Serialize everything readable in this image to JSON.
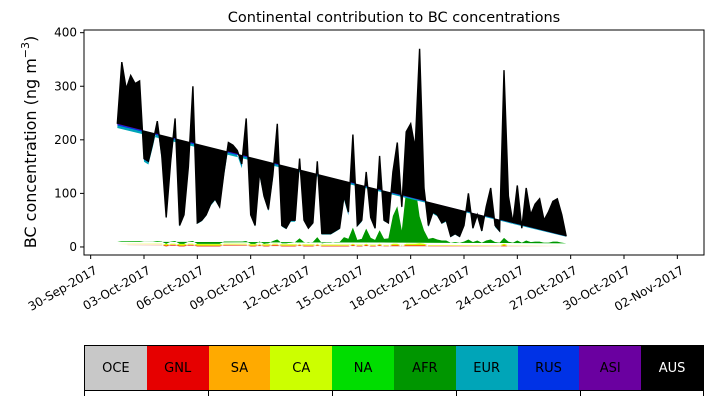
{
  "chart_data": {
    "type": "area",
    "stacked": true,
    "title": "Continental contribution to BC concentrations",
    "ylabel": "BC concentration (ng m",
    "ylabel_sup": "−3",
    "ylabel_close": ")",
    "ylim": [
      -15,
      405
    ],
    "yticks": [
      "0",
      "100",
      "200",
      "300",
      "400"
    ],
    "x_range": [
      "2017-09-29T15:00",
      "2017-11-03T12:00"
    ],
    "xticks": [
      "30-Sep-2017",
      "03-Oct-2017",
      "06-Oct-2017",
      "09-Oct-2017",
      "12-Oct-2017",
      "15-Oct-2017",
      "18-Oct-2017",
      "21-Oct-2017",
      "24-Oct-2017",
      "27-Oct-2017",
      "30-Oct-2017",
      "02-Nov-2017"
    ],
    "xtick_dates": [
      "2017-09-30",
      "2017-10-03",
      "2017-10-06",
      "2017-10-09",
      "2017-10-12",
      "2017-10-15",
      "2017-10-18",
      "2017-10-21",
      "2017-10-24",
      "2017-10-27",
      "2017-10-30",
      "2017-11-02"
    ],
    "total_line_color": "#000000",
    "series": [
      {
        "name": "OCE",
        "color": "#c8c8c8"
      },
      {
        "name": "GNL",
        "color": "#e60000"
      },
      {
        "name": "SA",
        "color": "#ffaa00"
      },
      {
        "name": "CA",
        "color": "#ccff00"
      },
      {
        "name": "NA",
        "color": "#00dd00"
      },
      {
        "name": "AFR",
        "color": "#009600"
      },
      {
        "name": "EUR",
        "color": "#00a5b8"
      },
      {
        "name": "RUS",
        "color": "#0032e6"
      },
      {
        "name": "ASI",
        "color": "#6a00a0"
      },
      {
        "name": "AUS",
        "color": "#000000"
      }
    ],
    "x": [
      "2017-10-01T12:00",
      "2017-10-01T18:00",
      "2017-10-02T00:00",
      "2017-10-02T06:00",
      "2017-10-02T12:00",
      "2017-10-02T18:00",
      "2017-10-03T00:00",
      "2017-10-03T06:00",
      "2017-10-03T12:00",
      "2017-10-03T18:00",
      "2017-10-04T00:00",
      "2017-10-04T06:00",
      "2017-10-04T12:00",
      "2017-10-04T18:00",
      "2017-10-05T00:00",
      "2017-10-05T06:00",
      "2017-10-05T12:00",
      "2017-10-05T18:00",
      "2017-10-06T00:00",
      "2017-10-06T06:00",
      "2017-10-06T12:00",
      "2017-10-06T18:00",
      "2017-10-07T00:00",
      "2017-10-07T06:00",
      "2017-10-07T12:00",
      "2017-10-07T18:00",
      "2017-10-08T00:00",
      "2017-10-08T06:00",
      "2017-10-08T12:00",
      "2017-10-08T18:00",
      "2017-10-09T00:00",
      "2017-10-09T06:00",
      "2017-10-09T12:00",
      "2017-10-09T18:00",
      "2017-10-10T00:00",
      "2017-10-10T06:00",
      "2017-10-10T12:00",
      "2017-10-10T18:00",
      "2017-10-11T00:00",
      "2017-10-11T06:00",
      "2017-10-11T12:00",
      "2017-10-11T18:00",
      "2017-10-12T00:00",
      "2017-10-12T06:00",
      "2017-10-12T12:00",
      "2017-10-12T18:00",
      "2017-10-13T00:00",
      "2017-10-13T06:00",
      "2017-10-13T12:00",
      "2017-10-13T18:00",
      "2017-10-14T00:00",
      "2017-10-14T06:00",
      "2017-10-14T12:00",
      "2017-10-14T18:00",
      "2017-10-15T00:00",
      "2017-10-15T06:00",
      "2017-10-15T12:00",
      "2017-10-15T18:00",
      "2017-10-16T00:00",
      "2017-10-16T06:00",
      "2017-10-16T12:00",
      "2017-10-16T18:00",
      "2017-10-17T00:00",
      "2017-10-17T06:00",
      "2017-10-17T12:00",
      "2017-10-17T18:00",
      "2017-10-18T00:00",
      "2017-10-18T06:00",
      "2017-10-18T12:00",
      "2017-10-18T18:00",
      "2017-10-19T00:00",
      "2017-10-19T06:00",
      "2017-10-19T12:00",
      "2017-10-19T18:00",
      "2017-10-20T00:00",
      "2017-10-20T06:00",
      "2017-10-20T12:00",
      "2017-10-20T18:00",
      "2017-10-21T00:00",
      "2017-10-21T06:00",
      "2017-10-21T12:00",
      "2017-10-21T18:00",
      "2017-10-22T00:00",
      "2017-10-22T06:00",
      "2017-10-22T12:00",
      "2017-10-22T18:00",
      "2017-10-23T00:00",
      "2017-10-23T06:00",
      "2017-10-23T12:00",
      "2017-10-23T18:00",
      "2017-10-24T00:00",
      "2017-10-24T06:00",
      "2017-10-24T12:00",
      "2017-10-24T18:00",
      "2017-10-25T00:00",
      "2017-10-25T06:00",
      "2017-10-25T12:00",
      "2017-10-25T18:00",
      "2017-10-26T00:00",
      "2017-10-26T06:00",
      "2017-10-26T12:00",
      "2017-10-26T18:00",
      "2017-10-27T00:00",
      "2017-10-27T06:00",
      "2017-10-27T12:00",
      "2017-10-27T18:00",
      "2017-10-28T00:00",
      "2017-10-28T06:00",
      "2017-10-28T12:00",
      "2017-10-28T18:00",
      "2017-10-29T00:00",
      "2017-10-29T06:00",
      "2017-10-29T12:00",
      "2017-10-29T18:00",
      "2017-10-30T00:00",
      "2017-10-30T06:00",
      "2017-10-30T12:00",
      "2017-10-30T18:00",
      "2017-10-31T00:00",
      "2017-10-31T06:00",
      "2017-10-31T12:00",
      "2017-10-31T18:00",
      "2017-11-01T00:00",
      "2017-11-01T06:00",
      "2017-11-01T12:00",
      "2017-11-01T18:00",
      "2017-11-02T00:00",
      "2017-11-02T06:00",
      "2017-11-02T12:00"
    ],
    "total": [
      230,
      345,
      295,
      320,
      305,
      310,
      165,
      160,
      195,
      235,
      170,
      55,
      160,
      240,
      40,
      60,
      150,
      300,
      45,
      50,
      60,
      80,
      90,
      75,
      140,
      195,
      190,
      180,
      155,
      240,
      60,
      40,
      140,
      95,
      70,
      135,
      230,
      40,
      35,
      50,
      50,
      165,
      50,
      35,
      45,
      160,
      25,
      25,
      25,
      30,
      35,
      95,
      65,
      210,
      40,
      50,
      140,
      55,
      35,
      170,
      50,
      45,
      140,
      195,
      75,
      215,
      230,
      185,
      370,
      110,
      40,
      65,
      60,
      45,
      50,
      20,
      25,
      20,
      40,
      100,
      35,
      60,
      30,
      75,
      110,
      40,
      30,
      330,
      95,
      45,
      115,
      35,
      110,
      60,
      80,
      90,
      50,
      65,
      85,
      90,
      60,
      20
    ],
    "values": {
      "OCE": [
        2,
        2,
        2,
        2,
        2,
        2,
        2,
        2,
        2,
        2,
        2,
        1,
        2,
        2,
        1,
        1,
        2,
        2,
        1,
        1,
        1,
        1,
        1,
        1,
        2,
        2,
        2,
        2,
        2,
        2,
        1,
        1,
        2,
        1,
        1,
        2,
        2,
        1,
        1,
        1,
        1,
        2,
        1,
        1,
        1,
        2,
        1,
        1,
        1,
        1,
        1,
        1,
        1,
        2,
        1,
        1,
        2,
        1,
        1,
        2,
        1,
        1,
        2,
        2,
        1,
        2,
        2,
        2,
        3,
        2,
        1,
        1,
        1,
        1,
        1,
        1,
        1,
        1,
        1,
        1,
        1,
        1,
        1,
        1,
        1,
        1,
        1,
        2,
        1,
        1,
        1,
        1,
        1,
        1,
        1,
        1,
        1,
        1,
        1,
        1,
        1,
        1
      ],
      "GNL": [
        1,
        1,
        1,
        1,
        1,
        1,
        1,
        1,
        1,
        1,
        1,
        0,
        1,
        1,
        0,
        0,
        1,
        1,
        0,
        0,
        0,
        0,
        0,
        0,
        1,
        1,
        1,
        1,
        1,
        1,
        0,
        0,
        1,
        0,
        0,
        1,
        1,
        0,
        0,
        0,
        0,
        1,
        0,
        0,
        0,
        1,
        0,
        0,
        0,
        0,
        0,
        0,
        0,
        1,
        0,
        0,
        1,
        0,
        0,
        1,
        0,
        0,
        1,
        1,
        0,
        1,
        1,
        1,
        1,
        1,
        0,
        0,
        0,
        0,
        0,
        0,
        0,
        0,
        0,
        0,
        0,
        0,
        0,
        0,
        0,
        0,
        0,
        1,
        0,
        0,
        0,
        0,
        0,
        0,
        0,
        0,
        0,
        0,
        0,
        0,
        0,
        0
      ],
      "SA": [
        1,
        1,
        1,
        1,
        1,
        1,
        1,
        1,
        1,
        1,
        1,
        1,
        1,
        1,
        1,
        1,
        1,
        1,
        1,
        1,
        1,
        1,
        1,
        1,
        1,
        1,
        1,
        1,
        1,
        1,
        1,
        1,
        1,
        1,
        1,
        1,
        1,
        1,
        1,
        1,
        1,
        1,
        1,
        1,
        1,
        1,
        1,
        1,
        1,
        1,
        1,
        1,
        1,
        1,
        1,
        1,
        1,
        1,
        1,
        1,
        1,
        1,
        1,
        1,
        1,
        1,
        1,
        1,
        1,
        1,
        1,
        1,
        1,
        1,
        1,
        1,
        1,
        1,
        1,
        1,
        1,
        1,
        1,
        1,
        1,
        1,
        1,
        1,
        1,
        1,
        1,
        1,
        1,
        1,
        1,
        1,
        1,
        1,
        1,
        1,
        1,
        1
      ],
      "CA": [
        2,
        2,
        2,
        2,
        2,
        2,
        2,
        2,
        2,
        2,
        2,
        1,
        2,
        2,
        1,
        1,
        2,
        2,
        1,
        1,
        1,
        1,
        1,
        1,
        2,
        2,
        2,
        2,
        2,
        2,
        1,
        1,
        2,
        1,
        1,
        2,
        2,
        1,
        1,
        1,
        1,
        2,
        1,
        1,
        1,
        2,
        1,
        1,
        1,
        1,
        1,
        1,
        1,
        2,
        1,
        1,
        2,
        1,
        1,
        2,
        1,
        1,
        2,
        2,
        1,
        2,
        2,
        2,
        2,
        2,
        1,
        1,
        1,
        1,
        1,
        1,
        1,
        1,
        1,
        1,
        1,
        1,
        1,
        1,
        1,
        1,
        1,
        2,
        1,
        1,
        1,
        1,
        1,
        1,
        1,
        1,
        1,
        1,
        1,
        1,
        1,
        1
      ],
      "NA": [
        4,
        5,
        5,
        5,
        5,
        5,
        4,
        4,
        4,
        5,
        4,
        3,
        4,
        5,
        3,
        3,
        4,
        5,
        3,
        3,
        3,
        3,
        3,
        3,
        4,
        4,
        4,
        4,
        4,
        5,
        3,
        3,
        4,
        3,
        4,
        5,
        8,
        4,
        4,
        5,
        6,
        10,
        6,
        5,
        6,
        12,
        4,
        5,
        5,
        6,
        6,
        15,
        12,
        30,
        10,
        12,
        28,
        14,
        10,
        25,
        12,
        10,
        30,
        45,
        20,
        40,
        45,
        40,
        30,
        20,
        10,
        12,
        10,
        8,
        8,
        5,
        6,
        5,
        6,
        10,
        6,
        8,
        5,
        8,
        10,
        6,
        5,
        10,
        6,
        5,
        8,
        5,
        8,
        6,
        6,
        6,
        5,
        5,
        6,
        6,
        5,
        4
      ],
      "AFR": [
        0,
        0,
        0,
        0,
        0,
        0,
        0,
        0,
        0,
        0,
        0,
        0,
        0,
        0,
        0,
        0,
        0,
        0,
        0,
        0,
        0,
        0,
        0,
        0,
        0,
        0,
        0,
        0,
        0,
        0,
        0,
        0,
        0,
        0,
        0,
        0,
        0,
        0,
        0,
        0,
        0,
        0,
        0,
        0,
        0,
        0,
        0,
        0,
        0,
        0,
        0,
        0,
        0,
        0,
        0,
        0,
        0,
        0,
        0,
        0,
        0,
        3,
        22,
        25,
        8,
        60,
        100,
        70,
        20,
        5,
        2,
        2,
        1,
        1,
        1,
        0,
        0,
        0,
        1,
        1,
        0,
        1,
        0,
        1,
        1,
        0,
        0,
        1,
        1,
        0,
        1,
        0,
        1,
        0,
        1,
        1,
        0,
        0,
        1,
        1,
        0,
        0
      ],
      "EUR": [
        212,
        324,
        276,
        300,
        286,
        291,
        149,
        144,
        177,
        214,
        152,
        47,
        142,
        219,
        32,
        52,
        132,
        278,
        37,
        42,
        52,
        71,
        81,
        67,
        122,
        175,
        170,
        161,
        137,
        218,
        52,
        32,
        122,
        86,
        60,
        115,
        205,
        31,
        26,
        39,
        38,
        138,
        39,
        26,
        34,
        130,
        16,
        15,
        15,
        19,
        24,
        70,
        44,
        163,
        25,
        32,
        102,
        35,
        20,
        131,
        33,
        28,
        75,
        110,
        40,
        100,
        70,
        65,
        295,
        70,
        22,
        45,
        43,
        31,
        35,
        10,
        14,
        10,
        28,
        80,
        24,
        45,
        20,
        60,
        90,
        28,
        20,
        300,
        80,
        35,
        98,
        25,
        92,
        48,
        66,
        75,
        39,
        53,
        70,
        75,
        49,
        12
      ],
      "RUS": [
        5,
        6,
        5,
        6,
        5,
        5,
        4,
        4,
        5,
        6,
        5,
        2,
        5,
        6,
        2,
        2,
        5,
        6,
        2,
        2,
        2,
        2,
        2,
        2,
        5,
        6,
        6,
        6,
        5,
        6,
        2,
        2,
        5,
        3,
        2,
        5,
        6,
        2,
        2,
        2,
        2,
        6,
        2,
        2,
        2,
        6,
        2,
        2,
        2,
        2,
        2,
        4,
        3,
        6,
        2,
        2,
        4,
        2,
        2,
        5,
        2,
        2,
        4,
        5,
        3,
        5,
        5,
        4,
        12,
        6,
        2,
        2,
        2,
        2,
        2,
        1,
        1,
        1,
        2,
        4,
        2,
        2,
        2,
        2,
        4,
        2,
        2,
        8,
        4,
        2,
        4,
        2,
        4,
        2,
        3,
        3,
        2,
        3,
        3,
        3,
        2,
        1
      ],
      "ASI": [
        2,
        3,
        2,
        2,
        2,
        2,
        1,
        1,
        2,
        3,
        2,
        0,
        2,
        2,
        0,
        0,
        2,
        4,
        0,
        0,
        0,
        0,
        0,
        0,
        2,
        3,
        3,
        2,
        2,
        3,
        0,
        0,
        2,
        0,
        0,
        3,
        4,
        0,
        0,
        0,
        0,
        4,
        0,
        0,
        0,
        4,
        0,
        0,
        0,
        0,
        0,
        2,
        2,
        3,
        0,
        0,
        1,
        0,
        0,
        2,
        0,
        0,
        2,
        3,
        1,
        3,
        3,
        2,
        5,
        2,
        0,
        1,
        1,
        0,
        1,
        0,
        1,
        1,
        0,
        1,
        0,
        1,
        0,
        1,
        2,
        1,
        0,
        5,
        1,
        0,
        1,
        0,
        1,
        1,
        1,
        1,
        1,
        1,
        1,
        1,
        1,
        0
      ],
      "AUS": [
        1,
        1,
        1,
        1,
        1,
        1,
        1,
        1,
        1,
        1,
        1,
        0,
        1,
        1,
        0,
        0,
        1,
        1,
        0,
        0,
        0,
        0,
        0,
        0,
        1,
        1,
        1,
        1,
        1,
        1,
        0,
        0,
        1,
        0,
        0,
        1,
        1,
        0,
        0,
        0,
        0,
        1,
        0,
        0,
        0,
        1,
        0,
        0,
        0,
        0,
        0,
        1,
        1,
        2,
        0,
        1,
        1,
        1,
        1,
        1,
        1,
        1,
        1,
        1,
        1,
        1,
        1,
        1,
        1,
        1,
        1,
        1,
        1,
        1,
        1,
        1,
        1,
        1,
        1,
        1,
        1,
        1,
        1,
        1,
        1,
        1,
        1,
        1,
        1,
        1,
        1,
        1,
        1,
        1,
        1,
        1,
        1,
        1,
        1,
        1,
        1,
        1
      ]
    }
  }
}
